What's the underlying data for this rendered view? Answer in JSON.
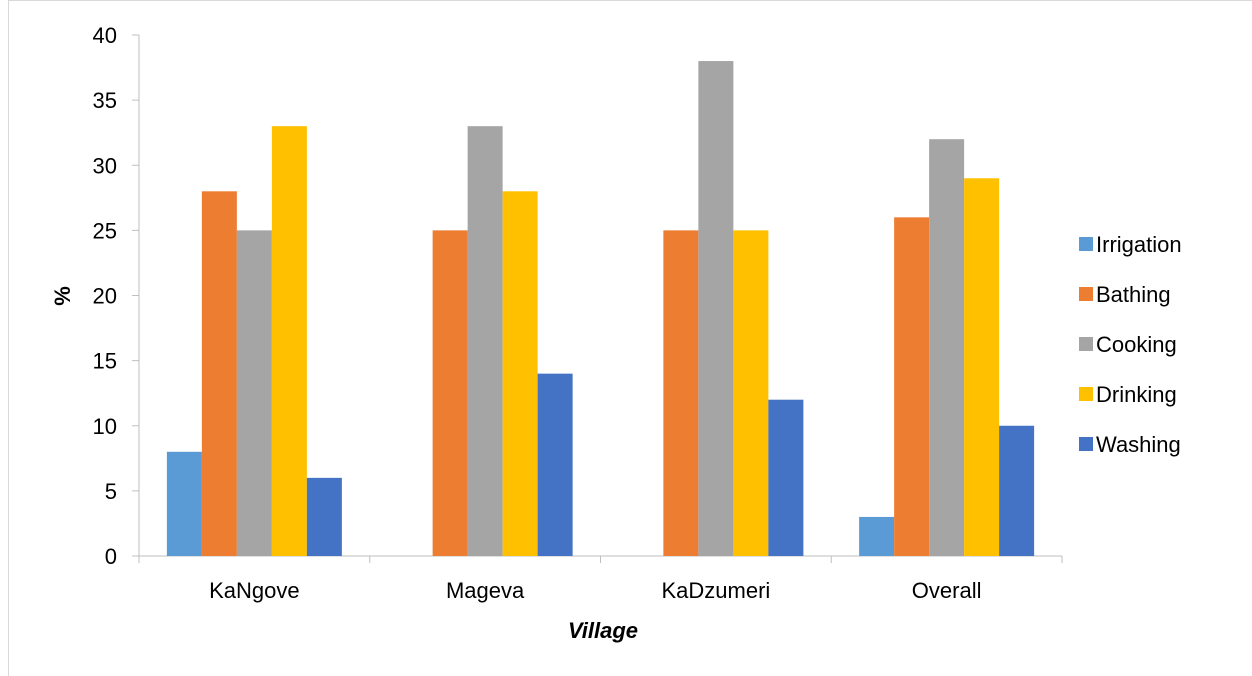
{
  "chart_data": {
    "type": "bar",
    "title": "",
    "xlabel": "Village",
    "ylabel": "%",
    "categories": [
      "KaNgove",
      "Mageva",
      "KaDzumeri",
      "Overall"
    ],
    "series": [
      {
        "name": "Irrigation",
        "color": "#5b9bd5",
        "values": [
          8,
          0,
          0,
          3
        ]
      },
      {
        "name": "Bathing",
        "color": "#ed7d31",
        "values": [
          28,
          25,
          25,
          26
        ]
      },
      {
        "name": "Cooking",
        "color": "#a5a5a5",
        "values": [
          25,
          33,
          38,
          32
        ]
      },
      {
        "name": "Drinking",
        "color": "#ffc000",
        "values": [
          33,
          28,
          25,
          29
        ]
      },
      {
        "name": "Washing",
        "color": "#4472c4",
        "values": [
          6,
          14,
          12,
          10
        ]
      }
    ],
    "ylim": [
      0,
      40
    ],
    "yticks": [
      "0",
      "5",
      "10",
      "15",
      "20",
      "25",
      "30",
      "35",
      "40"
    ],
    "grid": false,
    "legend_position": "right"
  }
}
